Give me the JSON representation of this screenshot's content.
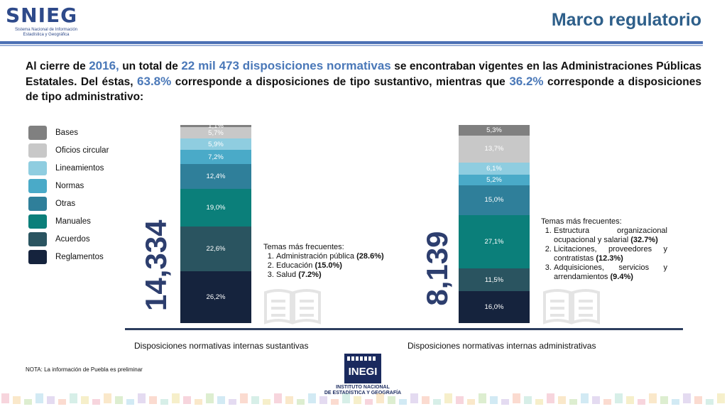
{
  "logo": {
    "text": "SNIEG",
    "subtitle": "Sistema Nacional de Información Estadística y Geográfica"
  },
  "title": "Marco regulatorio",
  "intro": {
    "p1": "Al cierre de ",
    "year": "2016,",
    "p2": " un total de ",
    "total": "22 mil 473 disposiciones normativas",
    "p3": " se encontraban vigentes en las Administraciones Públicas Estatales. Del éstas, ",
    "pct_sust": "63.8%",
    "p4": " corresponde a disposiciones de tipo sustantivo, mientras que ",
    "pct_adm": "36.2%",
    "p5": " corresponde a disposiciones de tipo administrativo:"
  },
  "legend": [
    {
      "label": "Bases",
      "color": "#808080"
    },
    {
      "label": "Oficios circular",
      "color": "#c8c8c8"
    },
    {
      "label": "Lineamientos",
      "color": "#8fcde0"
    },
    {
      "label": "Normas",
      "color": "#4aaac8"
    },
    {
      "label": "Otras",
      "color": "#2f7f9a"
    },
    {
      "label": "Manuales",
      "color": "#0b7f7a"
    },
    {
      "label": "Acuerdos",
      "color": "#2a5460"
    },
    {
      "label": "Reglamentos",
      "color": "#15233d"
    }
  ],
  "chart_data": [
    {
      "type": "bar",
      "stacked": true,
      "total_label": "14,334",
      "caption": "Disposiciones normativas internas sustantivas",
      "series": [
        {
          "name": "Reglamentos",
          "value": 26.2,
          "label": "26,2%"
        },
        {
          "name": "Acuerdos",
          "value": 22.6,
          "label": "22,6%"
        },
        {
          "name": "Manuales",
          "value": 19.0,
          "label": "19,0%"
        },
        {
          "name": "Otras",
          "value": 12.4,
          "label": "12,4%"
        },
        {
          "name": "Normas",
          "value": 7.2,
          "label": "7,2%"
        },
        {
          "name": "Lineamientos",
          "value": 5.9,
          "label": "5,9%"
        },
        {
          "name": "Oficios circular",
          "value": 5.7,
          "label": "5,7%"
        },
        {
          "name": "Bases",
          "value": 1.1,
          "label": "1,1%"
        }
      ]
    },
    {
      "type": "bar",
      "stacked": true,
      "total_label": "8,139",
      "caption": "Disposiciones normativas internas administrativas",
      "series": [
        {
          "name": "Reglamentos",
          "value": 16.0,
          "label": "16,0%"
        },
        {
          "name": "Acuerdos",
          "value": 11.5,
          "label": "11,5%"
        },
        {
          "name": "Manuales",
          "value": 27.1,
          "label": "27,1%"
        },
        {
          "name": "Otras",
          "value": 15.0,
          "label": "15,0%"
        },
        {
          "name": "Normas",
          "value": 5.2,
          "label": "5,2%"
        },
        {
          "name": "Lineamientos",
          "value": 6.1,
          "label": "6,1%"
        },
        {
          "name": "Oficios circular",
          "value": 13.7,
          "label": "13,7%"
        },
        {
          "name": "Bases",
          "value": 5.3,
          "label": "5,3%"
        }
      ]
    }
  ],
  "topics_sust": {
    "heading": "Temas más frecuentes:",
    "items": [
      {
        "text": "Administración pública ",
        "value": "(28.6%)"
      },
      {
        "text": "Educación ",
        "value": "(15.0%)"
      },
      {
        "text": "Salud ",
        "value": "(7.2%)"
      }
    ]
  },
  "topics_adm": {
    "heading": "Temas más frecuentes:",
    "items": [
      {
        "text": "Estructura organizacional ocupacional y salarial ",
        "value": "(32.7%)"
      },
      {
        "text": "Licitaciones, proveedores y contratistas ",
        "value": "(12.3%)"
      },
      {
        "text": "Adquisiciones, servicios y arrendamientos ",
        "value": "(9.4%)"
      }
    ]
  },
  "note": "NOTA: La información de Puebla es preliminar",
  "inegi": {
    "logo": "INEGI",
    "line1": "INSTITUTO NACIONAL",
    "line2": "DE ESTADÍSTICA Y GEOGRAFÍA"
  },
  "icons": {
    "book": "book-icon"
  }
}
